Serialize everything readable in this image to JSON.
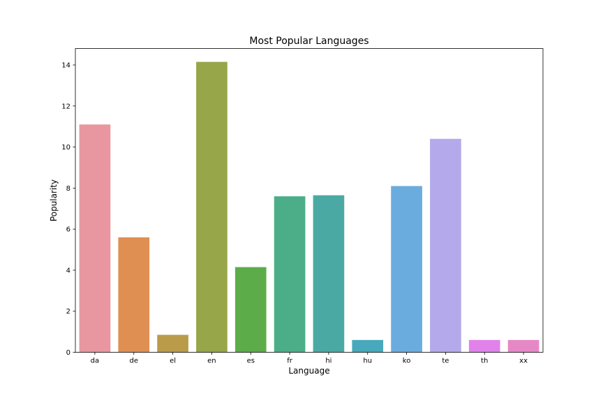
{
  "chart_data": {
    "type": "bar",
    "title": "Most Popular Languages",
    "xlabel": "Language",
    "ylabel": "Popularity",
    "categories": [
      "da",
      "de",
      "el",
      "en",
      "es",
      "fr",
      "hi",
      "hu",
      "ko",
      "te",
      "th",
      "xx"
    ],
    "values": [
      11.1,
      5.6,
      0.85,
      14.15,
      4.15,
      7.6,
      7.65,
      0.6,
      8.1,
      10.4,
      0.6,
      0.6
    ],
    "colors": [
      "#e8969f",
      "#e08f52",
      "#ba9b49",
      "#97a648",
      "#5cad49",
      "#4bae89",
      "#4aaaa3",
      "#48a9bd",
      "#6bacdf",
      "#b4a9ea",
      "#e182ea",
      "#e788c6"
    ],
    "ylim": [
      0,
      14.8
    ],
    "yticks": [
      0,
      2,
      4,
      6,
      8,
      10,
      12,
      14
    ],
    "grid": false
  }
}
